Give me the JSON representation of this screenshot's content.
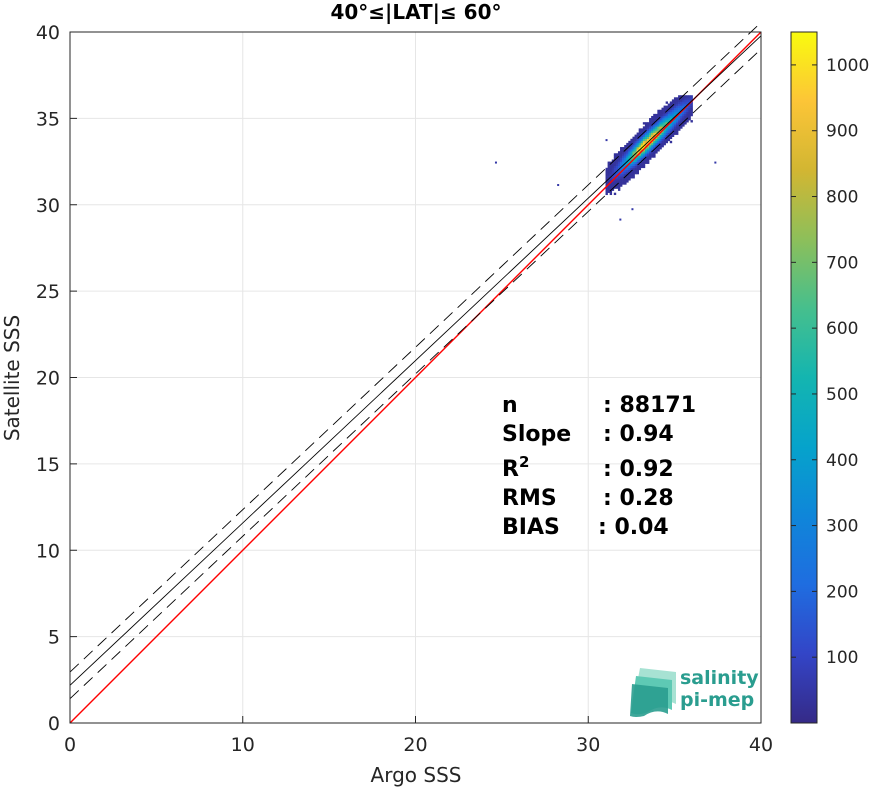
{
  "chart_data": {
    "type": "heatmap",
    "title": "40°≤|LAT|≤ 60°",
    "xlabel": "Argo SSS",
    "ylabel": "Satellite SSS",
    "xlim": [
      0,
      40
    ],
    "ylim": [
      0,
      40
    ],
    "xticks": [
      "0",
      "10",
      "20",
      "30",
      "40"
    ],
    "yticks": [
      "0",
      "5",
      "10",
      "15",
      "20",
      "25",
      "30",
      "35",
      "40"
    ],
    "grid": true,
    "colorbar": {
      "range": [
        0,
        1050
      ],
      "ticks": [
        "100",
        "200",
        "300",
        "400",
        "500",
        "600",
        "700",
        "800",
        "900",
        "1000"
      ],
      "colormap": "parula"
    },
    "density": {
      "center": [
        33.3,
        33.6
      ],
      "x_range": [
        31.0,
        36.0
      ],
      "y_range": [
        29.5,
        36.3
      ],
      "peak_count": 1050,
      "outliers": [
        [
          24.6,
          32.5
        ],
        [
          37.3,
          32.5
        ],
        [
          31.0,
          33.8
        ],
        [
          28.2,
          31.2
        ],
        [
          31.8,
          29.2
        ],
        [
          32.5,
          29.8
        ]
      ]
    },
    "lines": [
      {
        "kind": "one-to-one",
        "color": "#ff0000",
        "style": "solid",
        "intercept": 0,
        "slope": 1
      },
      {
        "kind": "regression",
        "color": "#000000",
        "style": "solid",
        "intercept": 2.18,
        "slope": 0.94
      },
      {
        "kind": "regression-upper",
        "color": "#000000",
        "style": "dashed",
        "intercept": 2.95,
        "slope": 0.94
      },
      {
        "kind": "regression-lower",
        "color": "#000000",
        "style": "dashed",
        "intercept": 1.41,
        "slope": 0.94
      }
    ],
    "stats": [
      {
        "label": "n",
        "value": ": 88171"
      },
      {
        "label": "Slope",
        "value": ": 0.94"
      },
      {
        "label": "R",
        "label_sup": "2",
        "value": ": 0.92"
      },
      {
        "label": "RMS",
        "value": ": 0.28"
      },
      {
        "label": "BIAS",
        "value": ": 0.04"
      }
    ]
  },
  "logo": {
    "line1": "salinity",
    "line2": "pi-mep",
    "colors": [
      "#2a9d8f",
      "#5ec9b4",
      "#a7e2d3"
    ]
  }
}
